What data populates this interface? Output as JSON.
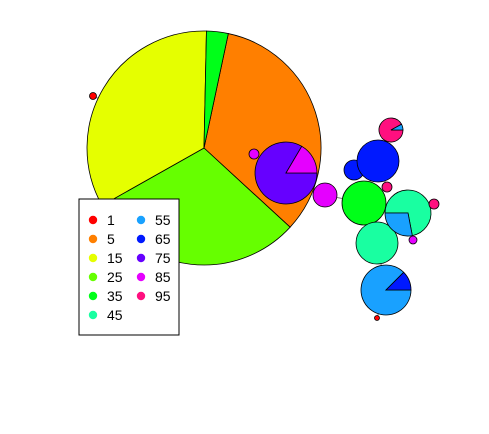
{
  "chart_data": {
    "type": "pie",
    "description_kind": "network of pie-chart nodes",
    "legend": {
      "placement": "lower-left",
      "columns": 2,
      "entries": [
        {
          "label": "1",
          "color": "#FF0000"
        },
        {
          "label": "5",
          "color": "#FF7F00"
        },
        {
          "label": "15",
          "color": "#E5FF00"
        },
        {
          "label": "25",
          "color": "#66FF00"
        },
        {
          "label": "35",
          "color": "#00FF19"
        },
        {
          "label": "45",
          "color": "#19FFA1"
        },
        {
          "label": "55",
          "color": "#19A1FF"
        },
        {
          "label": "65",
          "color": "#0019FF"
        },
        {
          "label": "75",
          "color": "#6600FF"
        },
        {
          "label": "85",
          "color": "#E500FF"
        },
        {
          "label": "95",
          "color": "#FF0F7F"
        }
      ]
    },
    "nodes": [
      {
        "id": "big",
        "category": "5",
        "slices": [
          {
            "category": "5",
            "value": 0.335
          },
          {
            "category": "25",
            "value": 0.3
          },
          {
            "category": "15",
            "value": 0.335
          },
          {
            "category": "35",
            "value": 0.03
          }
        ]
      },
      {
        "id": "purple",
        "category": "75",
        "slices": [
          {
            "category": "75",
            "value": 0.835
          },
          {
            "category": "85",
            "value": 0.165
          }
        ]
      },
      {
        "id": "green-r",
        "category": "35",
        "slices": [
          {
            "category": "35",
            "value": 1.0
          }
        ]
      },
      {
        "id": "teal-r",
        "category": "45",
        "slices": [
          {
            "category": "45",
            "value": 0.72
          },
          {
            "category": "55",
            "value": 0.28
          }
        ]
      },
      {
        "id": "teal-b",
        "category": "45",
        "slices": [
          {
            "category": "45",
            "value": 1.0
          }
        ]
      },
      {
        "id": "blue-b",
        "category": "55",
        "slices": [
          {
            "category": "55",
            "value": 0.875
          },
          {
            "category": "65",
            "value": 0.125
          }
        ]
      },
      {
        "id": "blue-t",
        "category": "65",
        "slices": [
          {
            "category": "65",
            "value": 1.0
          }
        ]
      },
      {
        "id": "pink-t",
        "category": "95",
        "slices": [
          {
            "category": "95",
            "value": 0.92
          },
          {
            "category": "55",
            "value": 0.08
          }
        ]
      },
      {
        "id": "mag-m",
        "category": "85",
        "slices": [
          {
            "category": "85",
            "value": 1.0
          }
        ]
      },
      {
        "id": "blue-s",
        "category": "65",
        "slices": [
          {
            "category": "65",
            "value": 1.0
          }
        ]
      },
      {
        "id": "pink-r",
        "category": "95",
        "slices": [
          {
            "category": "95",
            "value": 1.0
          }
        ]
      },
      {
        "id": "pink-s",
        "category": "95",
        "slices": [
          {
            "category": "95",
            "value": 1.0
          }
        ]
      },
      {
        "id": "mag-s",
        "category": "85",
        "slices": [
          {
            "category": "85",
            "value": 1.0
          }
        ]
      },
      {
        "id": "red-l",
        "category": "1",
        "slices": [
          {
            "category": "1",
            "value": 1.0
          }
        ]
      },
      {
        "id": "red-b",
        "category": "1",
        "slices": [
          {
            "category": "1",
            "value": 1.0
          }
        ]
      },
      {
        "id": "mag-t",
        "category": "85",
        "slices": [
          {
            "category": "85",
            "value": 1.0
          }
        ]
      }
    ]
  }
}
